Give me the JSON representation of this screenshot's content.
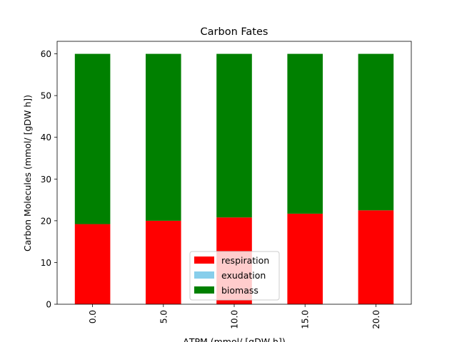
{
  "chart_data": {
    "type": "bar",
    "stacked": true,
    "title": "Carbon Fates",
    "xlabel": "ΔTPM (mmol/ [gDW h])",
    "ylabel": "Carbon Molecules (mmol/ [gDW h])",
    "categories": [
      "0.0",
      "5.0",
      "10.0",
      "15.0",
      "20.0"
    ],
    "ylim": [
      0,
      63
    ],
    "yticks": [
      0,
      10,
      20,
      30,
      40,
      50,
      60
    ],
    "grid": false,
    "legend_position": "bottom-center",
    "series": [
      {
        "name": "respiration",
        "color": "#ff0000",
        "values": [
          19.2,
          20.0,
          20.8,
          21.7,
          22.5
        ]
      },
      {
        "name": "exudation",
        "color": "#87ceeb",
        "values": [
          0,
          0,
          0,
          0,
          0
        ]
      },
      {
        "name": "biomass",
        "color": "#008000",
        "values": [
          40.8,
          40.0,
          39.2,
          38.3,
          37.5
        ]
      }
    ]
  }
}
